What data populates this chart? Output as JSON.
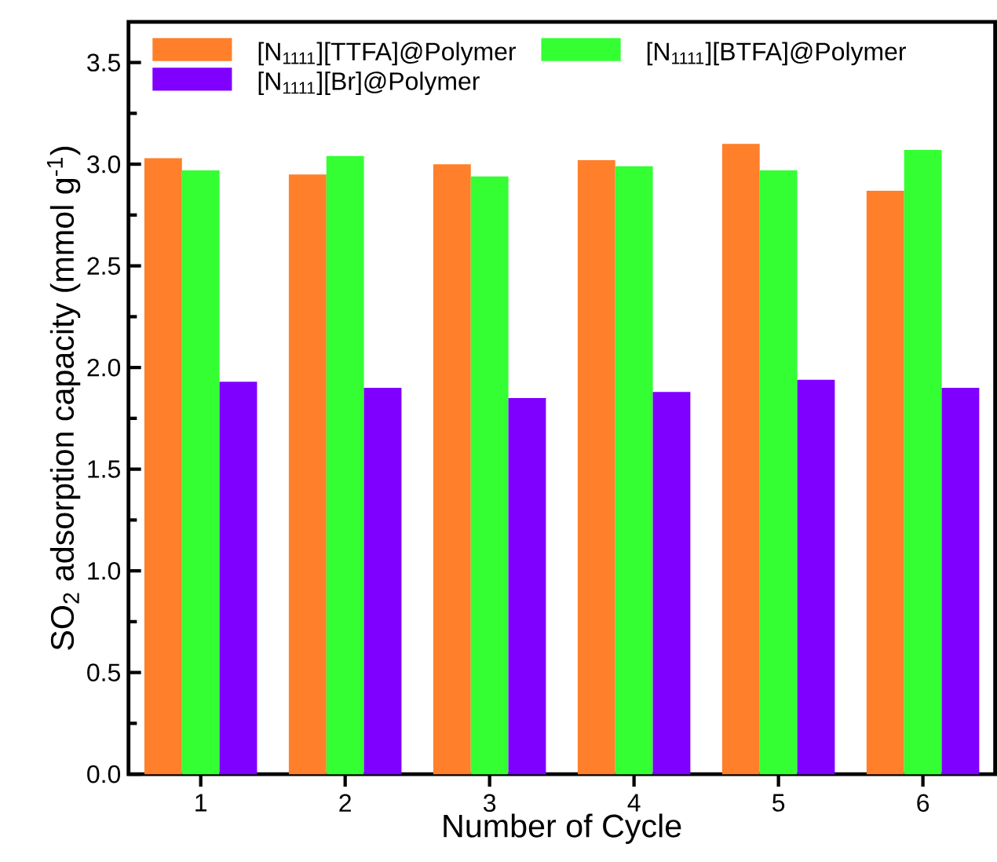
{
  "chart_data": {
    "type": "bar",
    "xlabel": "Number of Cycle",
    "ylabel": "SO$_{2}$ adsorption capacity (mmol g$^{-1}$)",
    "categories": [
      "1",
      "2",
      "3",
      "4",
      "5",
      "6"
    ],
    "series": [
      {
        "name": "[N$_{1111}$][TTFA]@Polymer",
        "color": "#ff7f2a",
        "values": [
          3.03,
          2.95,
          3.0,
          3.02,
          3.1,
          2.87
        ]
      },
      {
        "name": "[N$_{1111}$][BTFA]@Polymer",
        "color": "#33ff33",
        "values": [
          2.97,
          3.04,
          2.94,
          2.99,
          2.97,
          3.07
        ]
      },
      {
        "name": "[N$_{1111}$][Br]@Polymer",
        "color": "#7f00ff",
        "values": [
          1.93,
          1.9,
          1.85,
          1.88,
          1.94,
          1.9
        ]
      }
    ],
    "ylim": [
      0,
      3.7
    ],
    "yticks": [
      {
        "value": 0,
        "label": "0.0"
      },
      0.5,
      {
        "value": 1,
        "label": "1.0"
      },
      1.5,
      {
        "value": 2,
        "label": "2.0"
      },
      2.5,
      {
        "value": 3,
        "label": "3.0"
      },
      3.5
    ],
    "legend": "top left",
    "grid": false
  }
}
